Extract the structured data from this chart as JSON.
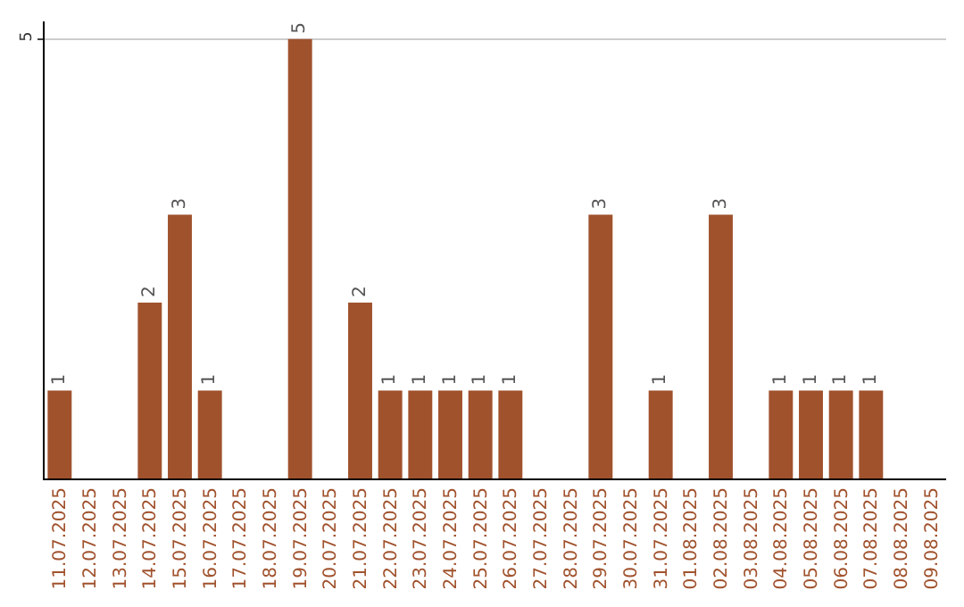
{
  "chart_data": {
    "type": "bar",
    "categories": [
      "11.07.2025",
      "12.07.2025",
      "13.07.2025",
      "14.07.2025",
      "15.07.2025",
      "16.07.2025",
      "17.07.2025",
      "18.07.2025",
      "19.07.2025",
      "20.07.2025",
      "21.07.2025",
      "22.07.2025",
      "23.07.2025",
      "24.07.2025",
      "25.07.2025",
      "26.07.2025",
      "27.07.2025",
      "28.07.2025",
      "29.07.2025",
      "30.07.2025",
      "31.07.2025",
      "01.08.2025",
      "02.08.2025",
      "03.08.2025",
      "04.08.2025",
      "05.08.2025",
      "06.08.2025",
      "07.08.2025",
      "08.08.2025",
      "09.08.2025"
    ],
    "values": [
      1,
      0,
      0,
      2,
      3,
      1,
      0,
      0,
      5,
      0,
      2,
      1,
      1,
      1,
      1,
      1,
      0,
      0,
      3,
      0,
      1,
      0,
      3,
      0,
      1,
      1,
      1,
      1,
      0,
      0
    ],
    "value_labels": [
      "1",
      null,
      null,
      "2",
      "3",
      "1",
      null,
      null,
      "5",
      null,
      "2",
      "1",
      "1",
      "1",
      "1",
      "1",
      null,
      null,
      "3",
      null,
      "1",
      null,
      "3",
      null,
      "1",
      "1",
      "1",
      "1",
      null,
      null
    ],
    "color": "#a0522d",
    "ylim": [
      0,
      5.2
    ],
    "yticks": [
      5
    ],
    "grid": "y"
  }
}
